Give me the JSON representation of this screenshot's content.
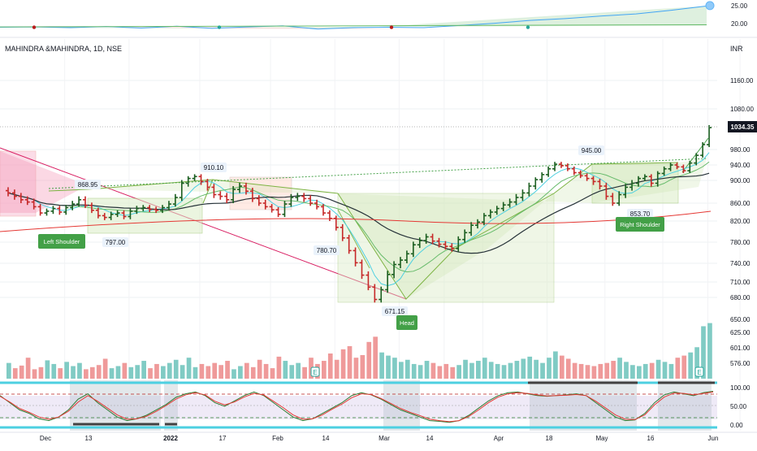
{
  "header": {
    "title": "MAHINDRA &MAHINDRA, 1D, NSE",
    "currency": "INR"
  },
  "colors": {
    "up_bar": "#1b5e20",
    "down_bar": "#c62828",
    "volume_up": "#80cbc4",
    "volume_down": "#ef9a9a",
    "ema_fast": "#4dd0e1",
    "ema_mid": "#66bb6a",
    "ema_slow": "#263238",
    "ema_long": "#e53935",
    "trend_line": "#d81b60",
    "pattern_fill": "#dcedc8",
    "neckline": "#43a047",
    "label_green": "#43a047",
    "last_price_bg": "#131722",
    "stoch_k": "#2e7d32",
    "stoch_d": "#e53935",
    "stoch_band": "#d1c4e9",
    "shade": "#b0bec5"
  },
  "chart_data": [
    {
      "type": "line",
      "panel": "top indicator",
      "y_ticks": [
        "25.00",
        "20.00"
      ],
      "ylim": [
        18,
        27
      ],
      "series": [
        {
          "values": [
            19.9,
            20.0,
            19.8,
            20.1,
            19.7,
            20.2,
            19.6,
            20.0,
            20.3,
            19.4,
            19.8,
            19.9,
            19.8,
            20.4,
            21.0,
            21.8,
            22.3,
            23.0,
            23.6,
            24.6,
            25.8
          ]
        }
      ]
    },
    {
      "type": "candlestick",
      "panel": "price",
      "x_tick_labels": [
        "Dec",
        "13",
        "2022",
        "17",
        "Feb",
        "14",
        "Mar",
        "14",
        "Apr",
        "18",
        "May",
        "16",
        "Jun"
      ],
      "y_ticks": [
        "1160.00",
        "1080.00",
        "980.00",
        "940.00",
        "900.00",
        "860.00",
        "820.00",
        "780.00",
        "740.00",
        "710.00",
        "680.00",
        "650.00",
        "625.00",
        "601.00",
        "576.00"
      ],
      "last_price": "1034.35",
      "annotations": [
        "868.95",
        "797.00",
        "910.10",
        "780.70",
        "671.15",
        "945.00",
        "853.70"
      ],
      "pattern_labels": [
        "Left Shoulder",
        "Head",
        "Right Shoulder"
      ],
      "closes": [
        878,
        872,
        866,
        862,
        852,
        838,
        842,
        848,
        840,
        850,
        858,
        866,
        855,
        844,
        832,
        828,
        835,
        838,
        830,
        842,
        848,
        850,
        846,
        844,
        850,
        858,
        870,
        895,
        905,
        910,
        898,
        888,
        875,
        872,
        866,
        884,
        890,
        881,
        868,
        860,
        852,
        845,
        835,
        858,
        870,
        872,
        868,
        860,
        852,
        838,
        826,
        808,
        788,
        764,
        741,
        721,
        700,
        676,
        695,
        722,
        738,
        746,
        758,
        775,
        783,
        790,
        782,
        776,
        772,
        768,
        785,
        798,
        812,
        818,
        832,
        840,
        848,
        856,
        862,
        870,
        878,
        890,
        902,
        915,
        930,
        942,
        938,
        930,
        920,
        912,
        905,
        898,
        890,
        872,
        860,
        875,
        888,
        895,
        905,
        910,
        895,
        918,
        930,
        940,
        935,
        925,
        945,
        965,
        992,
        1034
      ]
    },
    {
      "type": "bar",
      "panel": "volume",
      "values": [
        30,
        20,
        25,
        40,
        18,
        22,
        35,
        28,
        20,
        32,
        24,
        30,
        18,
        22,
        26,
        38,
        20,
        24,
        30,
        22,
        26,
        34,
        20,
        28,
        24,
        30,
        36,
        26,
        40,
        22,
        28,
        24,
        30,
        26,
        34,
        18,
        24,
        30,
        22,
        36,
        28,
        20,
        42,
        34,
        26,
        30,
        22,
        40,
        28,
        34,
        48,
        36,
        56,
        62,
        40,
        45,
        70,
        80,
        50,
        44,
        40,
        32,
        36,
        28,
        26,
        34,
        30,
        24,
        28,
        22,
        26,
        36,
        30,
        34,
        40,
        32,
        28,
        26,
        30,
        34,
        38,
        42,
        36,
        30,
        40,
        52,
        44,
        38,
        30,
        28,
        26,
        24,
        28,
        30,
        34,
        40,
        32,
        26,
        24,
        28,
        30,
        36,
        32,
        28,
        40,
        44,
        50,
        60,
        100,
        106
      ]
    },
    {
      "type": "line",
      "panel": "stochastic",
      "y_ticks": [
        "100.00",
        "50.00",
        "0.00"
      ],
      "ylim": [
        0,
        100
      ],
      "series": [
        {
          "values": [
            80,
            60,
            40,
            30,
            15,
            10,
            20,
            40,
            70,
            85,
            60,
            40,
            20,
            10,
            15,
            25,
            40,
            55,
            75,
            85,
            90,
            80,
            60,
            50,
            65,
            80,
            90,
            80,
            60,
            40,
            20,
            10,
            15,
            30,
            45,
            60,
            80,
            88,
            82,
            70,
            55,
            40,
            30,
            20,
            10,
            8,
            5,
            10,
            25,
            45,
            65,
            80,
            88,
            90,
            85,
            80,
            78,
            80,
            82,
            85,
            80,
            60,
            40,
            20,
            10,
            12,
            30,
            60,
            82,
            90,
            85,
            80,
            88,
            92
          ]
        },
        {
          "values": [
            78,
            62,
            44,
            33,
            20,
            14,
            20,
            36,
            62,
            80,
            64,
            45,
            26,
            14,
            15,
            22,
            36,
            52,
            70,
            82,
            88,
            82,
            64,
            54,
            62,
            76,
            86,
            82,
            64,
            46,
            26,
            14,
            15,
            26,
            42,
            56,
            74,
            85,
            83,
            72,
            58,
            44,
            33,
            24,
            14,
            10,
            7,
            10,
            22,
            40,
            60,
            76,
            85,
            88,
            86,
            82,
            79,
            80,
            81,
            83,
            80,
            64,
            45,
            26,
            14,
            13,
            26,
            54,
            76,
            87,
            86,
            82,
            86,
            90
          ]
        }
      ]
    }
  ]
}
